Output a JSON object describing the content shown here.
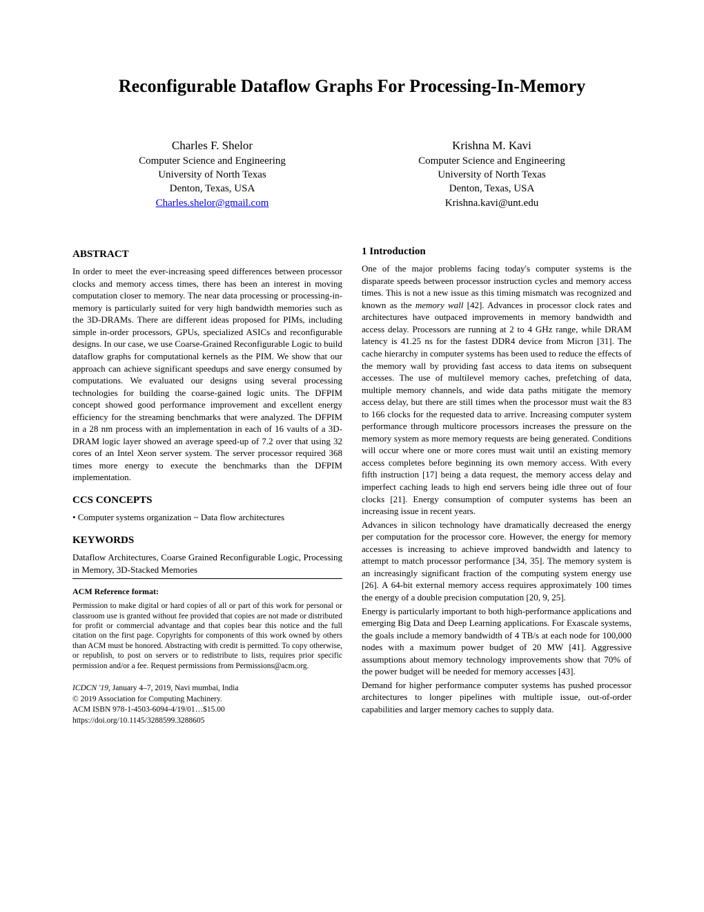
{
  "title": "Reconfigurable Dataflow Graphs For Processing-In-Memory",
  "authors": [
    {
      "name": "Charles F. Shelor",
      "dept": "Computer Science and Engineering",
      "univ": "University of North Texas",
      "loc": "Denton, Texas, USA",
      "email": "Charles.shelor@gmail.com",
      "email_link": true
    },
    {
      "name": "Krishna M. Kavi",
      "dept": "Computer Science and Engineering",
      "univ": "University of North Texas",
      "loc": "Denton, Texas, USA",
      "email": "Krishna.kavi@unt.edu",
      "email_link": false
    }
  ],
  "abstract": {
    "heading": "ABSTRACT",
    "text": "In order to meet the ever-increasing speed differences between processor clocks and memory access times, there has been an interest in moving computation closer to memory. The near data processing or processing-in-memory is particularly suited for very high bandwidth memories such as the 3D-DRAMs. There are different ideas proposed for PIMs, including simple in-order processors, GPUs, specialized ASICs and reconfigurable designs. In our case, we use Coarse-Grained Reconfigurable Logic to build dataflow graphs for computational kernels as the PIM. We show that our approach can achieve significant speedups and save energy consumed by computations. We evaluated our designs using several processing technologies for building the coarse-gained logic units. The DFPIM concept showed good performance improvement and excellent energy efficiency for the streaming benchmarks that were analyzed. The DFPIM in a 28 nm process with an implementation in each of 16 vaults of a 3D-DRAM logic layer showed an average speed-up of 7.2  over that using 32 cores of an Intel Xeon server system. The server processor required 368 times more energy to execute the benchmarks than the DFPIM implementation."
  },
  "ccs": {
    "heading": "CCS CONCEPTS",
    "text": "• Computer systems organization ~ Data flow architectures"
  },
  "keywords": {
    "heading": "KEYWORDS",
    "text": "Dataflow Architectures, Coarse Grained Reconfigurable Logic, Processing in Memory, 3D-Stacked Memories"
  },
  "ref_format": {
    "heading": "ACM Reference format:",
    "permission": "Permission to make digital or hard copies of all or part of this work for personal or classroom use is granted without fee provided that copies are not made or distributed for profit or commercial advantage and that copies bear this notice and the full citation on the first page. Copyrights for components of this work owned by others than ACM must be honored. Abstracting with credit is permitted. To copy otherwise, or republish, to post on servers or to redistribute to lists, requires prior specific permission and/or a fee. Request permissions from Permissions@acm.org."
  },
  "conf": {
    "line1_italic": "ICDCN '19,",
    "line1_rest": " January 4–7, 2019, Navi mumbai, India",
    "line2": "© 2019 Association for Computing Machinery.",
    "line3": "ACM ISBN 978-1-4503-6094-4/19/01…$15.00",
    "line4": "https://doi.org/10.1145/3288599.3288605"
  },
  "intro": {
    "heading": "1    Introduction",
    "p1a": "One of the major problems facing today's computer systems is the disparate speeds between processor instruction cycles and memory access times. This is not a new issue as this timing mismatch was recognized and known as the ",
    "p1_italic": "memory wall",
    "p1b": " [42]. Advances in processor clock rates and architectures have outpaced improvements in memory bandwidth and access delay.  Processors are running at 2 to 4 GHz range, while DRAM latency is 41.25 ns for the fastest DDR4 device from Micron [31]. The cache hierarchy in computer systems has been used to reduce the effects of the memory wall by providing fast access to data items on subsequent accesses. The use of multilevel memory caches, prefetching of data, multiple memory channels, and wide data paths mitigate the memory access delay, but there are still times when the processor must wait the 83 to 166 clocks for the requested data to arrive. Increasing computer system performance through multicore processors increases the pressure on the memory system as more memory requests are being generated. Conditions will occur where one or more cores must wait until an existing memory access completes before beginning its own memory access. With every fifth instruction [17] being a data request, the memory access delay and imperfect caching leads to high end servers being idle three out of four clocks [21]. Energy consumption of computer systems has been an increasing issue in recent years.",
    "p2": "Advances in silicon technology have dramatically decreased the energy per computation for the processor core. However, the energy for memory accesses is increasing to achieve improved bandwidth and latency to attempt to match processor performance [34, 35]. The memory system is an increasingly significant fraction of the computing system energy use [26]. A 64-bit external memory access requires approximately 100 times the energy of a double precision computation [20, 9, 25].",
    "p3": "Energy is particularly important to both high-performance applications and emerging Big Data and Deep Learning applications.  For Exascale systems, the goals include a memory bandwidth of 4 TB/s at each node for 100,000 nodes with a maximum power budget of 20 MW [41]. Aggressive assumptions about memory technology improvements show that 70% of the power budget will be needed for memory accesses [43].",
    "p4": "Demand for higher performance computer systems has pushed processor architectures to longer pipelines with multiple issue, out-of-order capabilities and larger memory caches to supply data."
  }
}
